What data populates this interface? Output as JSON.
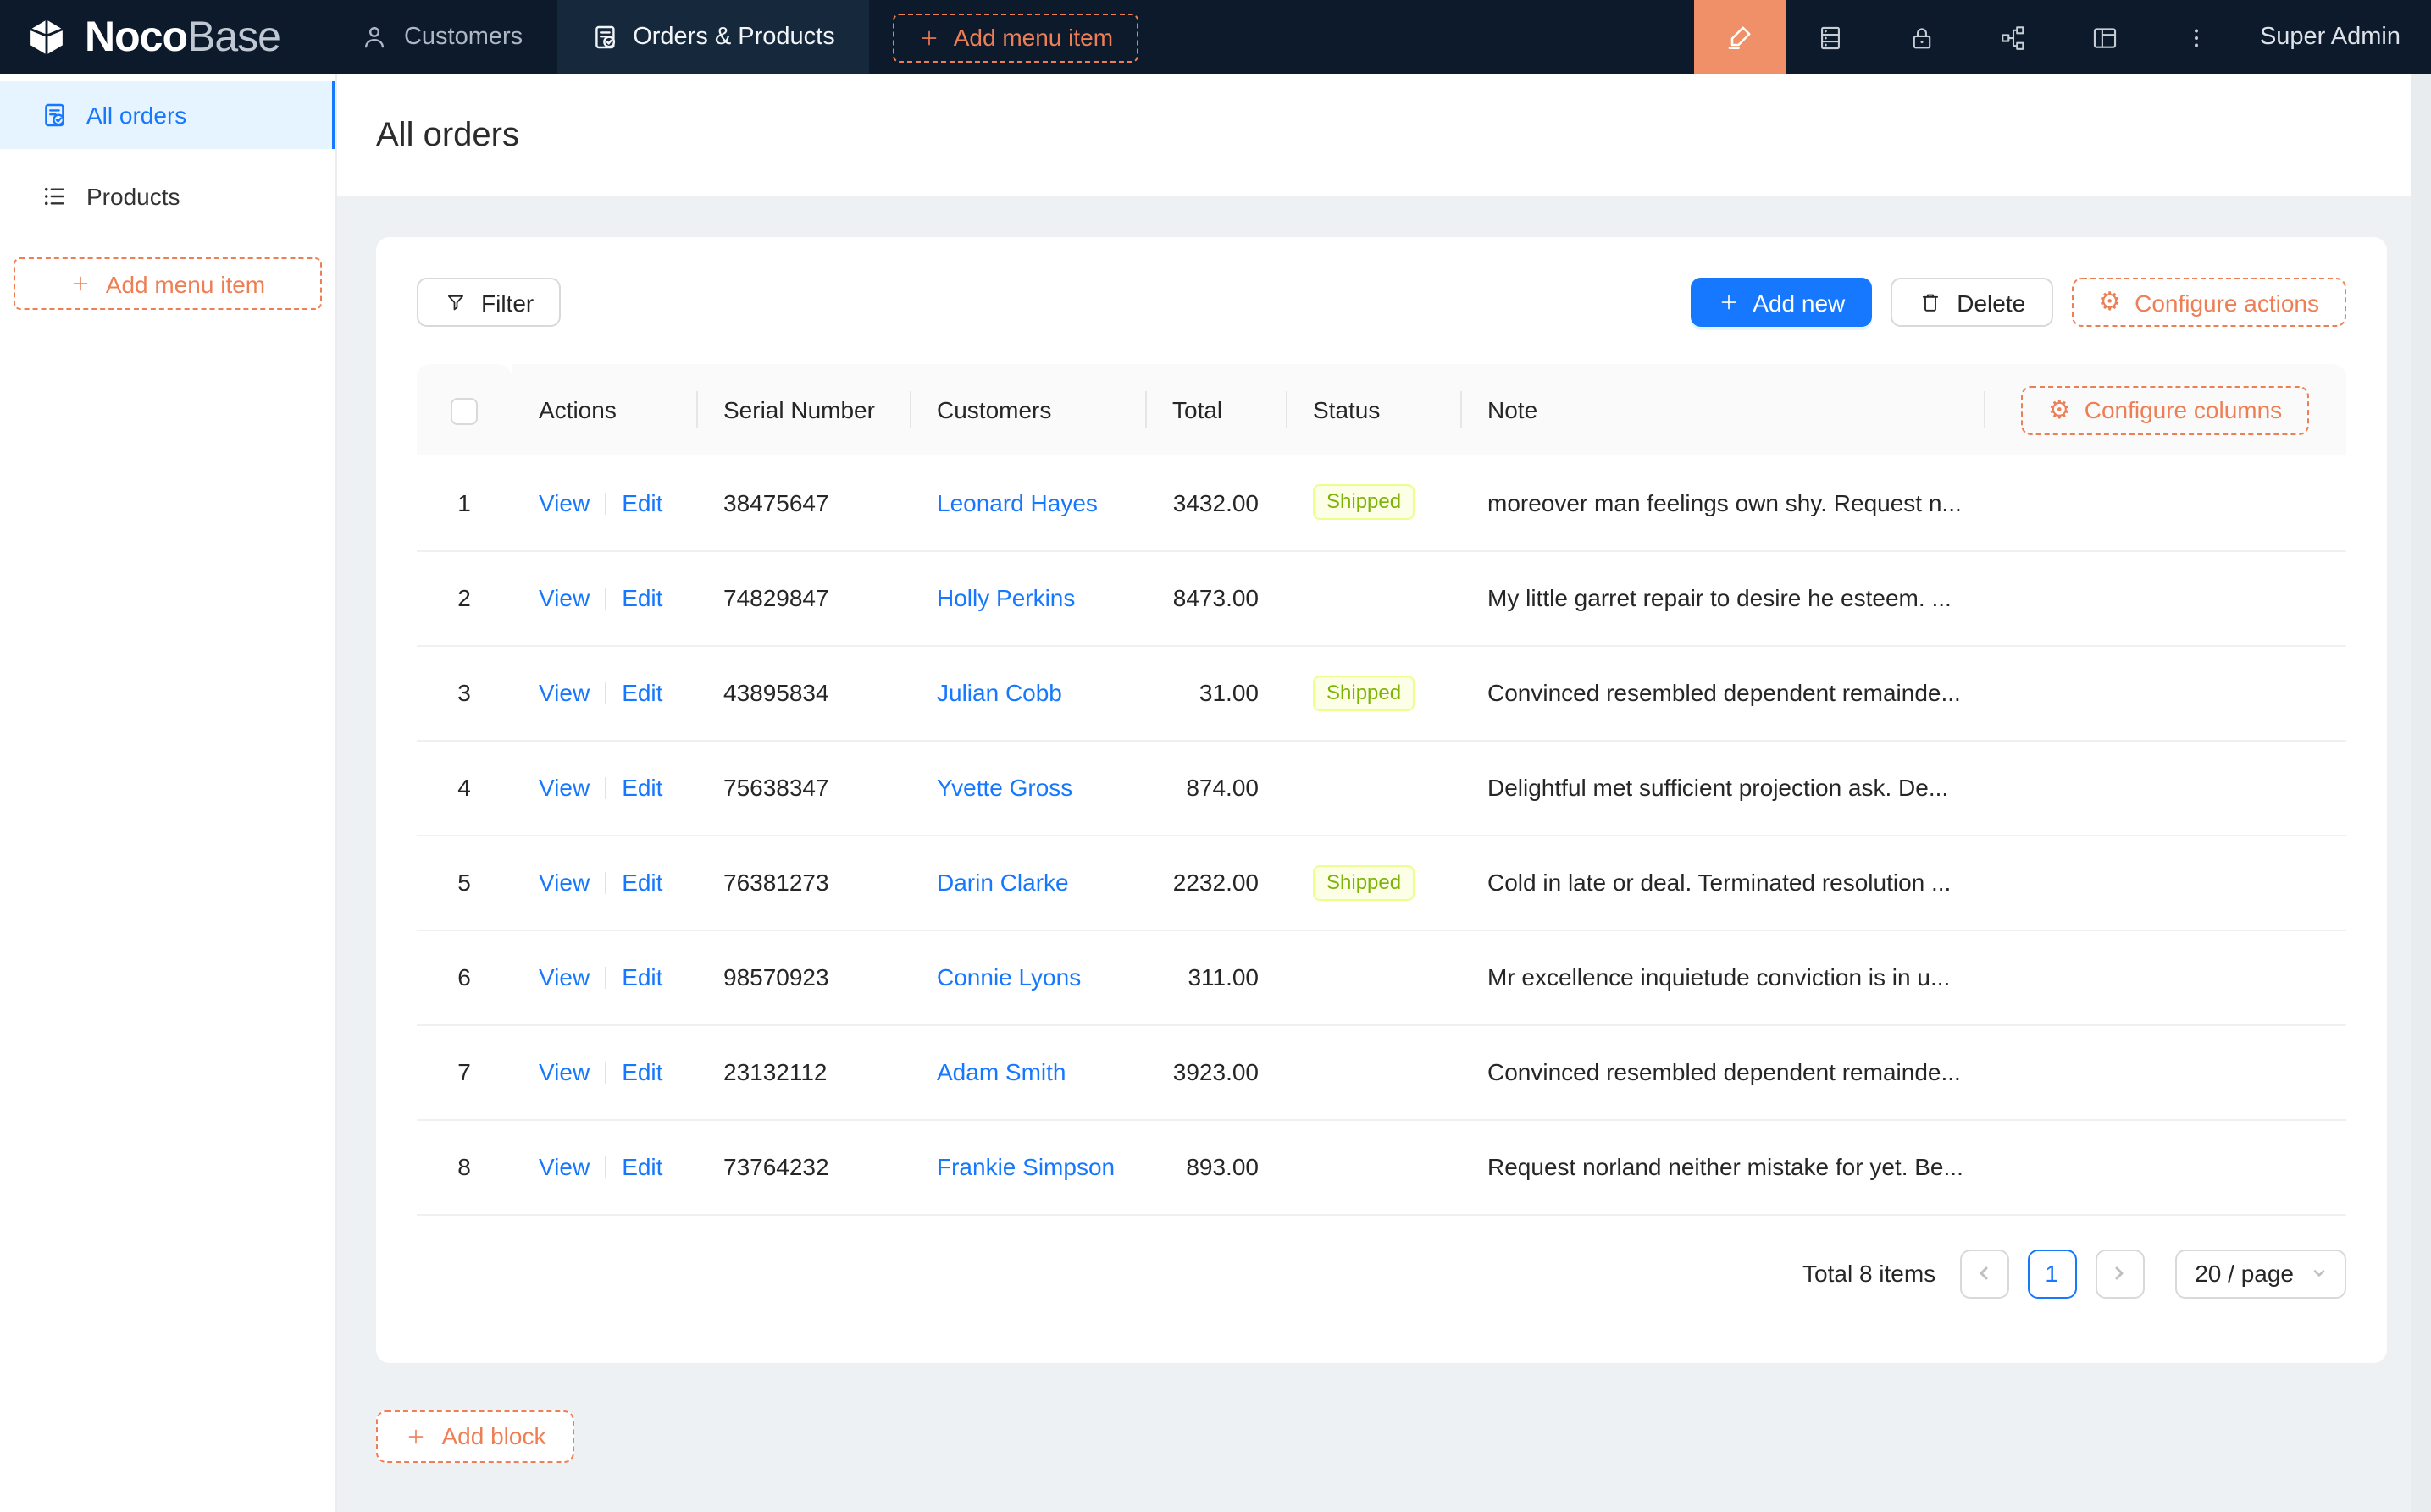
{
  "brand": {
    "name_bold": "Noco",
    "name_light": "Base"
  },
  "topnav": {
    "items": [
      {
        "label": "Customers"
      },
      {
        "label": "Orders & Products",
        "active": true
      }
    ],
    "add_menu_item": "Add menu item",
    "user": "Super Admin"
  },
  "sidebar": {
    "items": [
      {
        "label": "All orders",
        "active": true
      },
      {
        "label": "Products"
      }
    ],
    "add_menu_item": "Add menu item"
  },
  "page": {
    "title": "All orders",
    "add_block": "Add block"
  },
  "toolbar": {
    "filter": "Filter",
    "add_new": "Add new",
    "delete": "Delete",
    "configure_actions": "Configure actions"
  },
  "table": {
    "configure_columns": "Configure columns",
    "columns": [
      "Actions",
      "Serial Number",
      "Customers",
      "Total",
      "Status",
      "Note"
    ],
    "actions": {
      "view": "View",
      "edit": "Edit"
    },
    "rows": [
      {
        "index": 1,
        "serial": "38475647",
        "customer": "Leonard Hayes",
        "total": "3432.00",
        "status": "Shipped",
        "note": "moreover man feelings own shy. Request n..."
      },
      {
        "index": 2,
        "serial": "74829847",
        "customer": "Holly Perkins",
        "total": "8473.00",
        "status": "",
        "note": "My little garret repair to desire he esteem. ..."
      },
      {
        "index": 3,
        "serial": "43895834",
        "customer": "Julian Cobb",
        "total": "31.00",
        "status": "Shipped",
        "note": "Convinced resembled dependent remainde..."
      },
      {
        "index": 4,
        "serial": "75638347",
        "customer": "Yvette Gross",
        "total": "874.00",
        "status": "",
        "note": "Delightful met sufficient projection ask. De..."
      },
      {
        "index": 5,
        "serial": "76381273",
        "customer": "Darin Clarke",
        "total": "2232.00",
        "status": "Shipped",
        "note": "Cold in late or deal. Terminated resolution ..."
      },
      {
        "index": 6,
        "serial": "98570923",
        "customer": "Connie Lyons",
        "total": "311.00",
        "status": "",
        "note": "Mr excellence inquietude conviction is in u..."
      },
      {
        "index": 7,
        "serial": "23132112",
        "customer": "Adam Smith",
        "total": "3923.00",
        "status": "",
        "note": "Convinced resembled dependent remainde..."
      },
      {
        "index": 8,
        "serial": "73764232",
        "customer": "Frankie Simpson",
        "total": "893.00",
        "status": "",
        "note": "Request norland neither mistake for yet. Be..."
      }
    ]
  },
  "pagination": {
    "total": "Total 8 items",
    "page": "1",
    "page_size": "20 / page"
  },
  "icons": [
    "nocobase-logo",
    "customers-user-icon",
    "orders-file-check-icon",
    "plus-icon",
    "highlighter-pen-icon",
    "database-icon",
    "lock-icon",
    "plugin-apartment-icon",
    "layout-icon",
    "more-ellipsis-icon",
    "list-icon",
    "filter-funnel-icon",
    "trash-icon",
    "gear-icon",
    "chevron-left-icon",
    "chevron-right-icon",
    "chevron-down-icon"
  ],
  "colors": {
    "accent_orange": "#ee7f55",
    "editor_button_bg": "#f09068",
    "primary_blue": "#1677ff",
    "navbar_bg": "#0c1a2b",
    "sidebar_active_bg": "#e6f4ff",
    "content_bg": "#eef1f4",
    "tag_bg": "#fcffe6",
    "tag_border": "#eaff8f",
    "tag_text": "#7cb305"
  }
}
